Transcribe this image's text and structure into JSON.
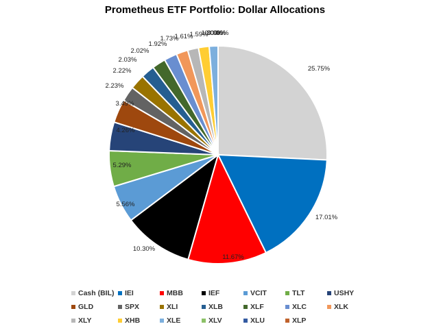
{
  "chart_data": {
    "type": "pie",
    "title": "Prometheus ETF Portfolio: Dollar Allocations",
    "categories": [
      "Cash (BIL)",
      "IEI",
      "MBB",
      "IEF",
      "VCIT",
      "TLT",
      "USHY",
      "GLD",
      "SPX",
      "XLI",
      "XLB",
      "XLF",
      "XLC",
      "XLK",
      "XLY",
      "XHB",
      "XLE",
      "XLV",
      "XLU",
      "XLP"
    ],
    "values": [
      25.75,
      17.01,
      11.67,
      10.3,
      5.56,
      5.29,
      4.26,
      3.49,
      2.23,
      2.22,
      2.03,
      2.02,
      1.92,
      1.73,
      1.61,
      1.59,
      1.3,
      0.0,
      0.0,
      0.0
    ],
    "data_labels": [
      "25.75%",
      "17.01%",
      "11.67%",
      "10.30%",
      "5.56%",
      "5.29%",
      "4.26%",
      "3.49%",
      "2.23%",
      "2.22%",
      "2.03%",
      "2.02%",
      "1.92%",
      "1.73%",
      "1.61%",
      "1.59%",
      "1.30%",
      "0.00%",
      "0.00%",
      "0.00%"
    ],
    "colors": [
      "#d3d3d3",
      "#0070c0",
      "#ff0000",
      "#000000",
      "#5b9bd5",
      "#70ad47",
      "#264478",
      "#9e480e",
      "#636363",
      "#997300",
      "#255e91",
      "#43682b",
      "#698ed0",
      "#f1975a",
      "#b7b7b7",
      "#ffcd33",
      "#7cafdd",
      "#8cc168",
      "#335aa1",
      "#c0622c"
    ],
    "start_angle_deg": 0,
    "legend_position": "bottom"
  }
}
